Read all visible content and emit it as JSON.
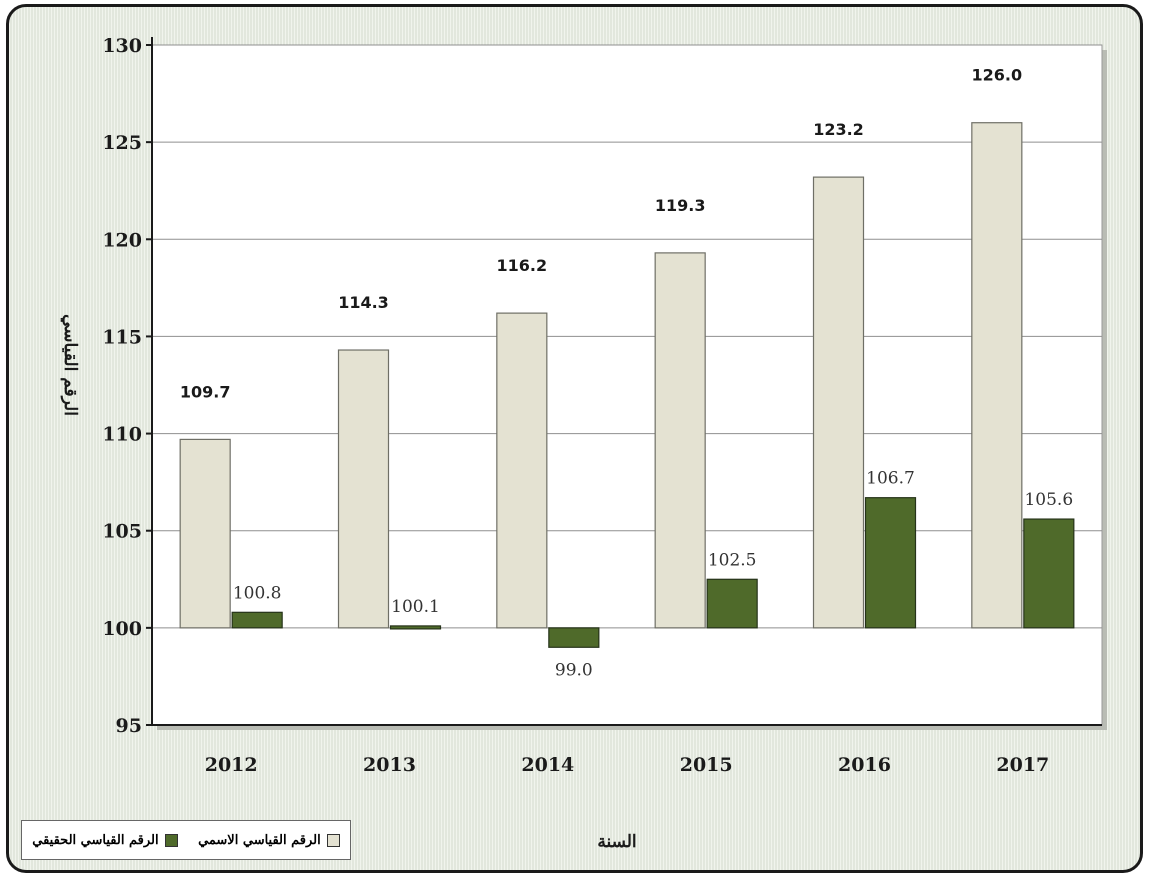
{
  "chart_data": {
    "type": "bar",
    "categories": [
      "2012",
      "2013",
      "2014",
      "2015",
      "2016",
      "2017"
    ],
    "series": [
      {
        "name": "الرقم القياسي الاسمي",
        "values": [
          109.7,
          114.3,
          116.2,
          119.3,
          123.2,
          126.0
        ],
        "color": "#e4e2d2"
      },
      {
        "name": "الرقم القياسي الحقيقي",
        "values": [
          100.8,
          100.1,
          99.0,
          102.5,
          106.7,
          105.6
        ],
        "color": "#4f6a2a"
      }
    ],
    "value_labels": {
      "nominal": [
        "109.7",
        "114.3",
        "116.2",
        "119.3",
        "123.2",
        "126.0"
      ],
      "real": [
        "100.8",
        "100.1",
        "99.0",
        "102.5",
        "106.7",
        "105.6"
      ]
    },
    "yticks": [
      "95",
      "100",
      "105",
      "110",
      "115",
      "120",
      "125",
      "130"
    ],
    "ylim": [
      95,
      130
    ],
    "baseline": 100,
    "xlabel": "السنة",
    "ylabel": "الرقم القياسي",
    "grid": true,
    "legend_position": "bottom-left",
    "plot_background": "#ffffff",
    "frame_background": "#e9eee4"
  }
}
